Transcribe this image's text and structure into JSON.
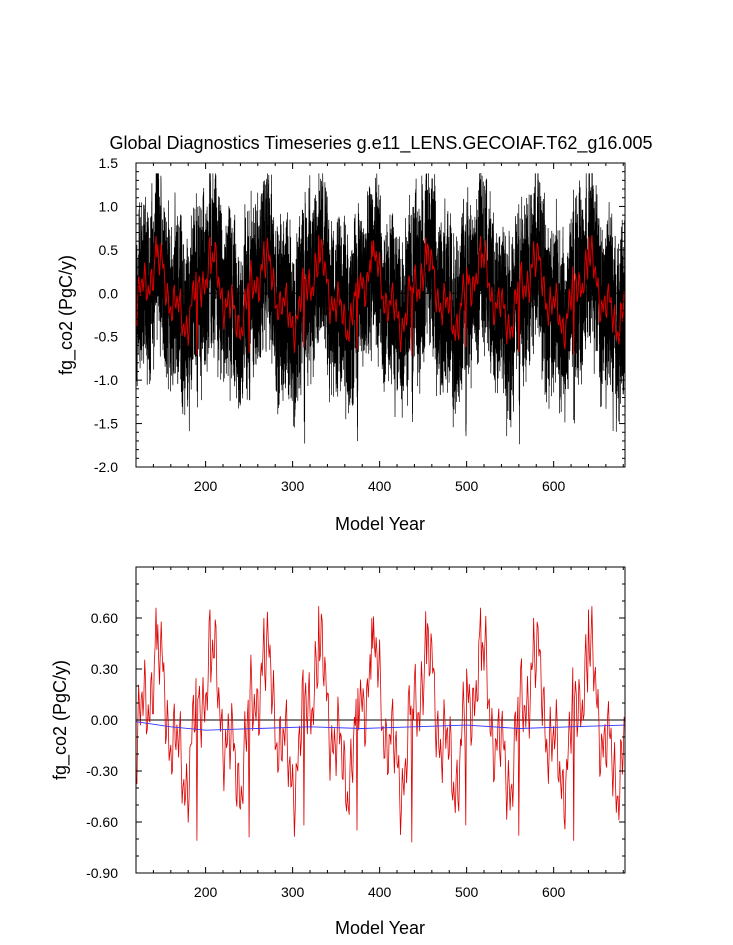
{
  "chart_data": [
    {
      "type": "line",
      "title": "Global Diagnostics Timeseries g.e11_LENS.GECOIAF.T62_g16.005",
      "xlabel": "Model Year",
      "ylabel": "fg_co2 (PgC/y)",
      "xlim": [
        120,
        682
      ],
      "ylim": [
        -2.0,
        1.5
      ],
      "xticks": [
        "200",
        "300",
        "400",
        "500",
        "600"
      ],
      "yticks": [
        "1.5",
        "1.0",
        "0.5",
        "0.0",
        "-0.5",
        "-1.0",
        "-1.5",
        "-2.0"
      ],
      "grid": false,
      "reference_line": 0.0,
      "series": [
        {
          "color": "#000000",
          "style": "monthly",
          "min": -1.9,
          "max": 1.38
        },
        {
          "color": "#dd0000",
          "style": "annual mean",
          "min": -0.72,
          "max": 0.67
        }
      ],
      "cycle_years": 62,
      "cycle_peaks": [
        {
          "x": 143,
          "y": 0.66
        },
        {
          "x": 205,
          "y": 0.65
        },
        {
          "x": 267,
          "y": 0.6
        },
        {
          "x": 330,
          "y": 0.67
        },
        {
          "x": 391,
          "y": 0.6
        },
        {
          "x": 453,
          "y": 0.64
        },
        {
          "x": 516,
          "y": 0.66
        },
        {
          "x": 577,
          "y": 0.6
        },
        {
          "x": 640,
          "y": 0.65
        }
      ],
      "cycle_troughs": [
        {
          "x": 190,
          "y": -0.71
        },
        {
          "x": 250,
          "y": -0.69
        },
        {
          "x": 313,
          "y": -0.62
        },
        {
          "x": 374,
          "y": -0.65
        },
        {
          "x": 437,
          "y": -0.72
        },
        {
          "x": 499,
          "y": -0.62
        },
        {
          "x": 560,
          "y": -0.68
        },
        {
          "x": 623,
          "y": -0.71
        }
      ]
    },
    {
      "type": "line",
      "title": "",
      "xlabel": "Model Year",
      "ylabel": "fg_co2 (PgC/y)",
      "xlim": [
        120,
        682
      ],
      "ylim": [
        -0.9,
        0.9
      ],
      "xticks": [
        "200",
        "300",
        "400",
        "500",
        "600"
      ],
      "yticks": [
        "0.60",
        "0.30",
        "0.00",
        "-0.30",
        "-0.60",
        "-0.90"
      ],
      "grid": false,
      "reference_line": 0.0,
      "series": [
        {
          "color": "#dd0000",
          "style": "annual mean",
          "min": -0.72,
          "max": 0.67
        },
        {
          "color": "#3333ff",
          "style": "running mean",
          "values_at": [
            {
              "x": 120,
              "y": -0.01
            },
            {
              "x": 160,
              "y": -0.04
            },
            {
              "x": 200,
              "y": -0.06
            },
            {
              "x": 260,
              "y": -0.05
            },
            {
              "x": 320,
              "y": -0.04
            },
            {
              "x": 380,
              "y": -0.05
            },
            {
              "x": 440,
              "y": -0.04
            },
            {
              "x": 500,
              "y": -0.03
            },
            {
              "x": 560,
              "y": -0.05
            },
            {
              "x": 620,
              "y": -0.04
            },
            {
              "x": 682,
              "y": -0.03
            }
          ]
        }
      ]
    }
  ]
}
